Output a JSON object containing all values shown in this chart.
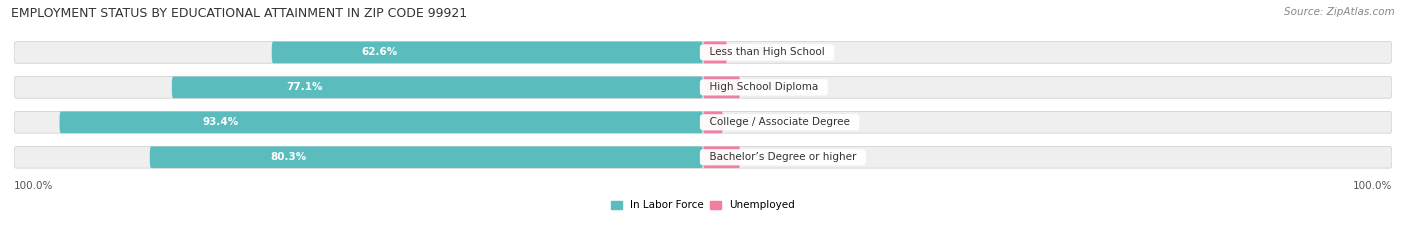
{
  "title": "EMPLOYMENT STATUS BY EDUCATIONAL ATTAINMENT IN ZIP CODE 99921",
  "source": "Source: ZipAtlas.com",
  "categories": [
    "Less than High School",
    "High School Diploma",
    "College / Associate Degree",
    "Bachelor’s Degree or higher"
  ],
  "in_labor_force": [
    62.6,
    77.1,
    93.4,
    80.3
  ],
  "unemployed": [
    3.5,
    5.4,
    2.9,
    5.4
  ],
  "color_labor": "#5bbcbe",
  "color_unemployed": "#f07fa0",
  "color_bar_bg": "#e8e8e8",
  "xlim_left": -100.0,
  "xlim_right": 100.0,
  "x_left_label": "100.0%",
  "x_right_label": "100.0%",
  "legend_labor": "In Labor Force",
  "legend_unemployed": "Unemployed",
  "title_fontsize": 9,
  "source_fontsize": 7.5,
  "bar_height": 0.62,
  "bar_label_fontsize": 7.5,
  "category_fontsize": 7.5
}
